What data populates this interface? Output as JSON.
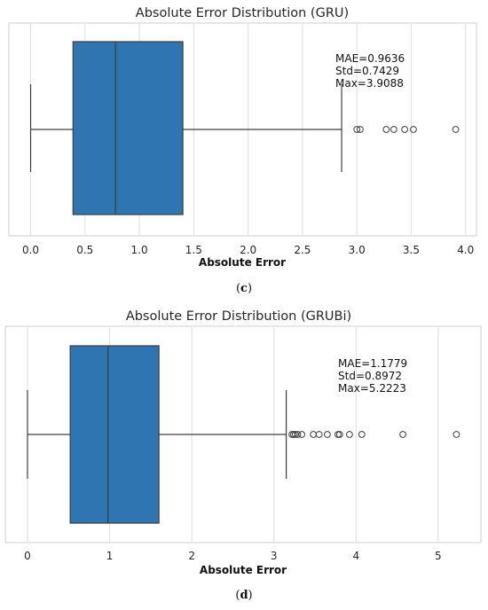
{
  "chart_data": [
    {
      "type": "box",
      "title": "Absolute Error Distribution (GRU)",
      "xlabel": "Absolute Error",
      "ylabel": "",
      "xlim": [
        -0.2,
        4.1
      ],
      "xticks": [
        0.0,
        0.5,
        1.0,
        1.5,
        2.0,
        2.5,
        3.0,
        3.5,
        4.0
      ],
      "xtick_labels": [
        "0.0",
        "0.5",
        "1.0",
        "1.5",
        "2.0",
        "2.5",
        "3.0",
        "3.5",
        "4.0"
      ],
      "grid": "vertical",
      "box": {
        "whisker_low": 0.0,
        "q1": 0.39,
        "median": 0.78,
        "q3": 1.4,
        "whisker_high": 2.86
      },
      "outliers": [
        3.0,
        3.03,
        3.27,
        3.34,
        3.44,
        3.52,
        3.9088
      ],
      "color": "#2e75b2",
      "annotation": [
        "MAE=0.9636",
        "Std=0.7429",
        "Max=3.9088"
      ],
      "caption_label": "c"
    },
    {
      "type": "box",
      "title": "Absolute Error Distribution (GRUBi)",
      "xlabel": "Absolute Error",
      "ylabel": "",
      "xlim": [
        -0.27,
        5.52
      ],
      "xticks": [
        0,
        1,
        2,
        3,
        4,
        5
      ],
      "xtick_labels": [
        "0",
        "1",
        "2",
        "3",
        "4",
        "5"
      ],
      "grid": "vertical",
      "box": {
        "whisker_low": 0.0,
        "q1": 0.52,
        "median": 0.98,
        "q3": 1.6,
        "whisker_high": 3.15
      },
      "outliers": [
        3.22,
        3.24,
        3.26,
        3.29,
        3.34,
        3.48,
        3.55,
        3.65,
        3.78,
        3.8,
        3.92,
        4.07,
        4.57,
        5.2223
      ],
      "color": "#2e75b2",
      "annotation": [
        "MAE=1.1779",
        "Std=0.8972",
        "Max=5.2223"
      ],
      "caption_label": "d"
    }
  ]
}
